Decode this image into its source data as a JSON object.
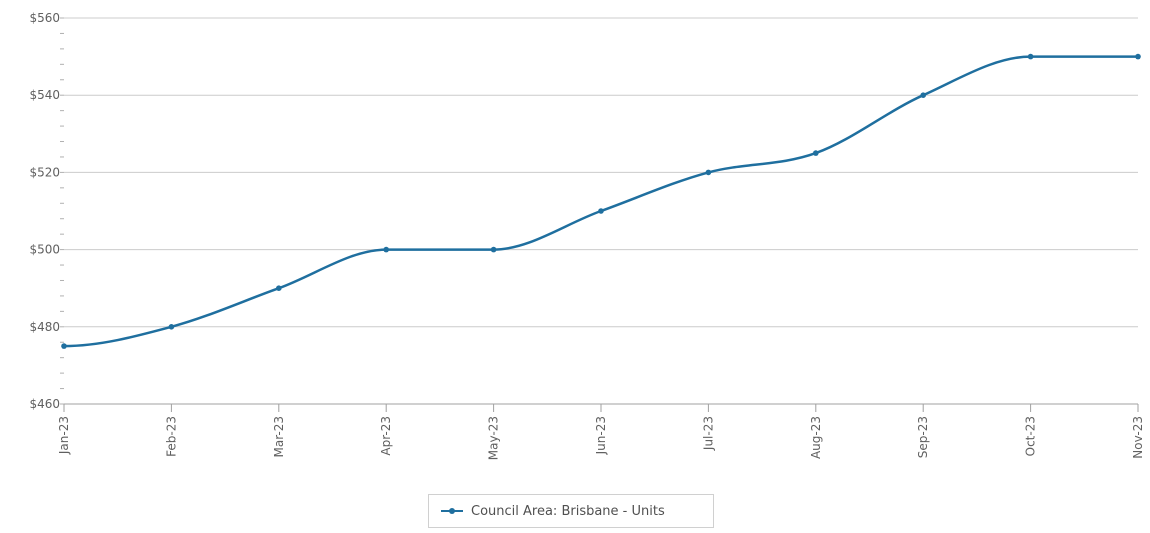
{
  "chart_data": {
    "type": "line",
    "categories": [
      "Jan-23",
      "Feb-23",
      "Mar-23",
      "Apr-23",
      "May-23",
      "Jun-23",
      "Jul-23",
      "Aug-23",
      "Sep-23",
      "Oct-23",
      "Nov-23"
    ],
    "series": [
      {
        "name": "Council Area: Brisbane - Units",
        "values": [
          475,
          480,
          490,
          500,
          500,
          510,
          520,
          525,
          540,
          550,
          550
        ],
        "color": "#1f6f9f"
      }
    ],
    "ylim": [
      460,
      560
    ],
    "yticks": [
      460,
      480,
      500,
      520,
      540,
      560
    ],
    "ytick_labels": [
      "$460",
      "$480",
      "$500",
      "$520",
      "$540",
      "$560"
    ],
    "grid": true,
    "legend": "bottom-center",
    "smooth": true
  }
}
